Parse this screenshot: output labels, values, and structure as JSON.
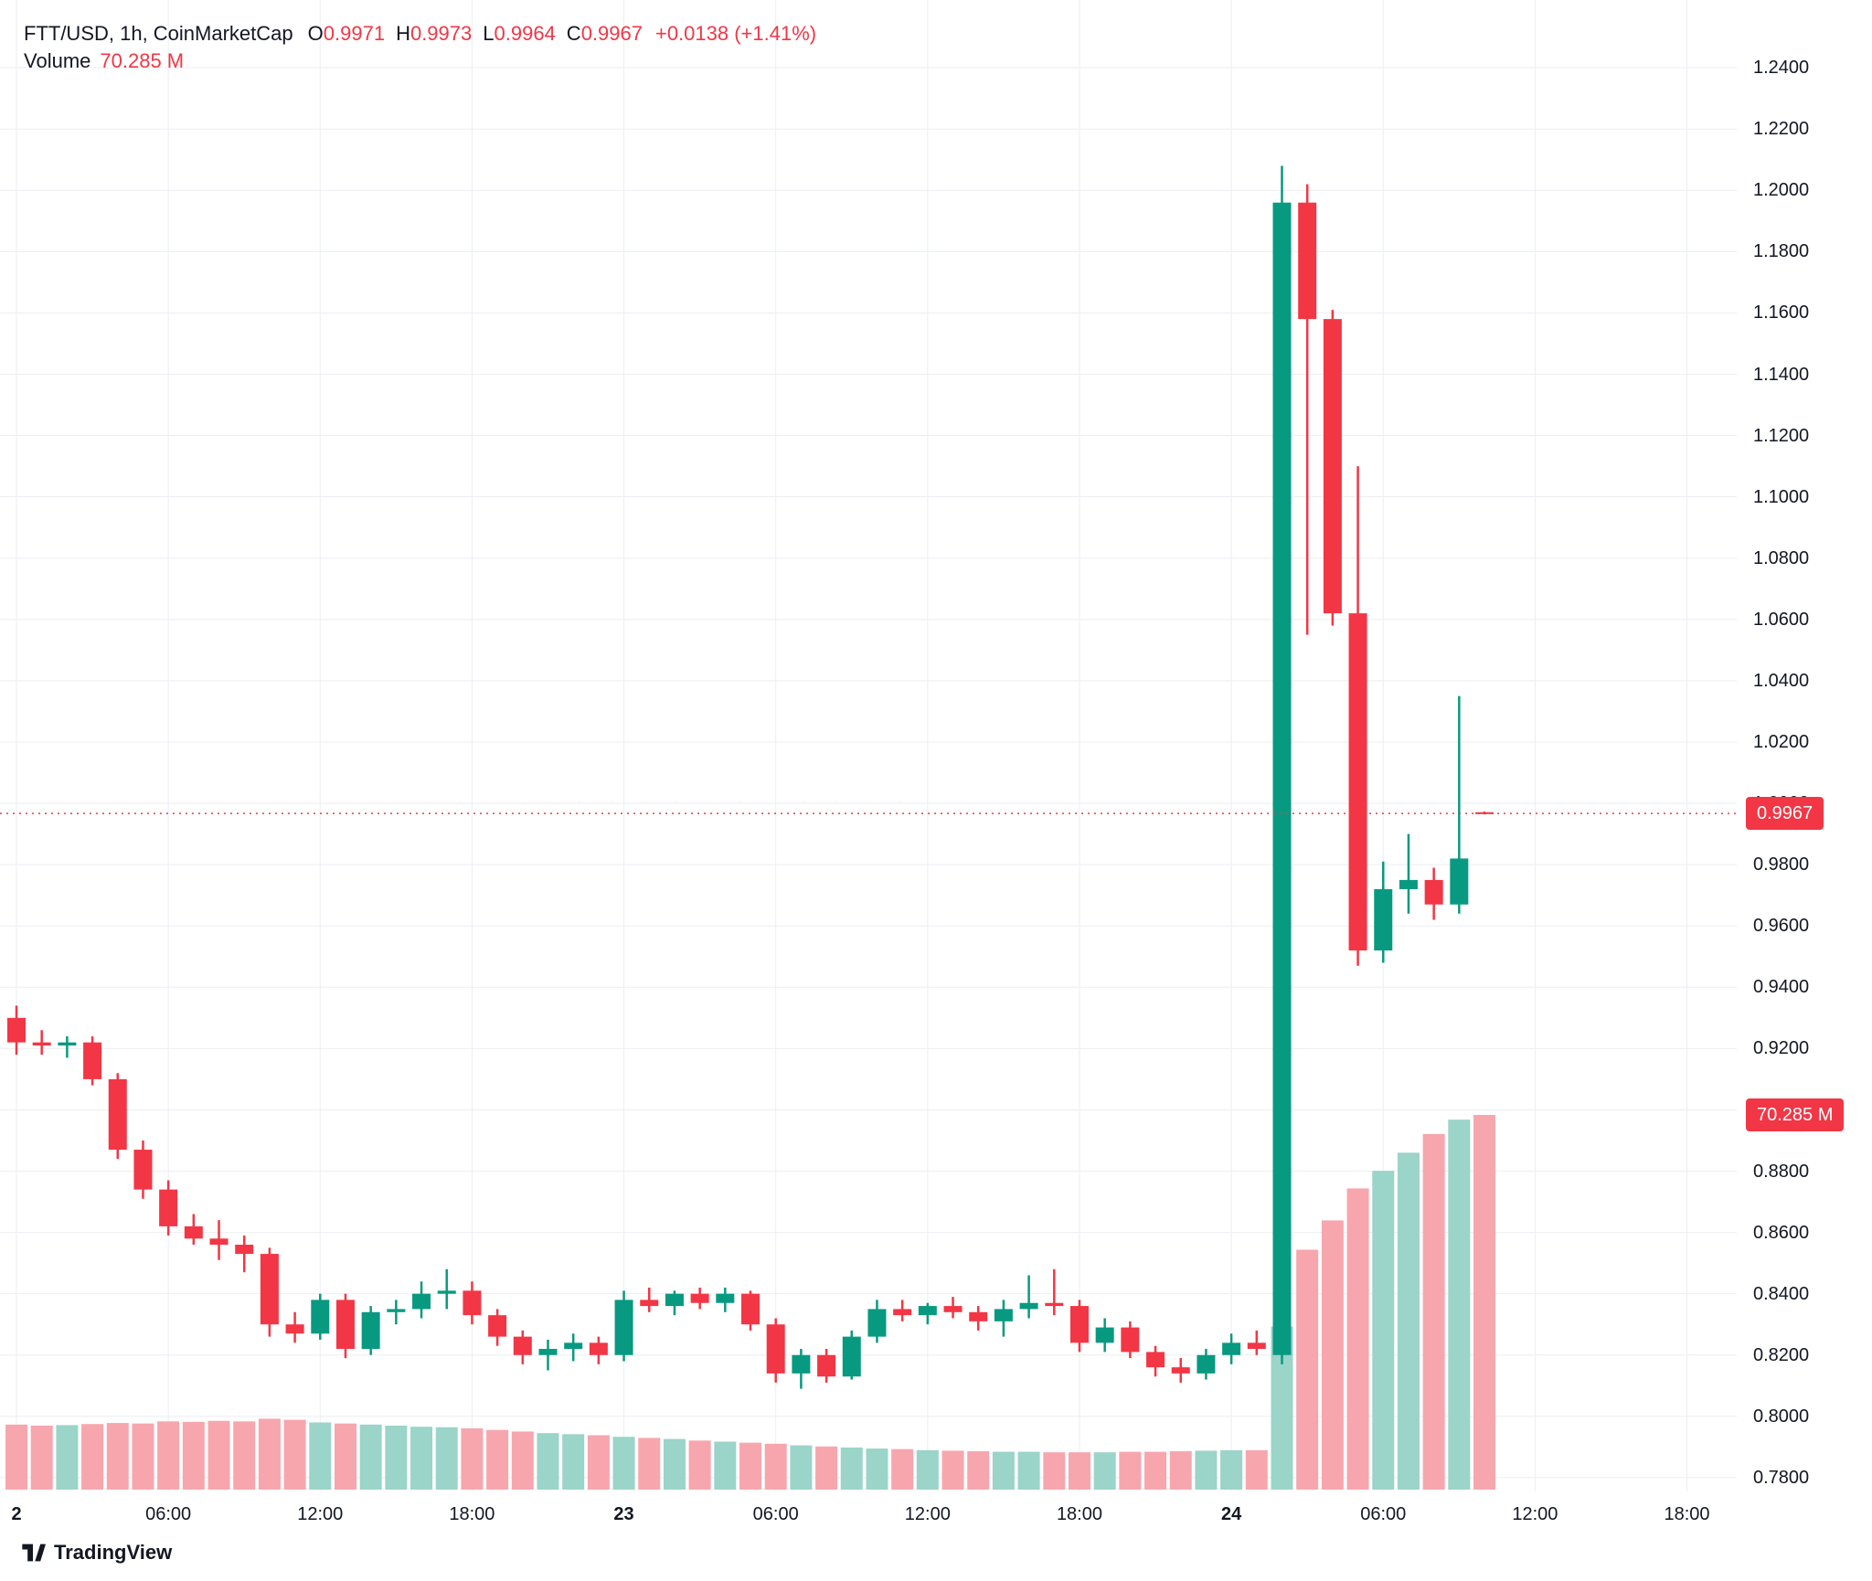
{
  "legend": {
    "symbol": "FTT/USD, 1h, CoinMarketCap",
    "open_label": "O",
    "open": "0.9971",
    "high_label": "H",
    "high": "0.9973",
    "low_label": "L",
    "low": "0.9964",
    "close_label": "C",
    "close": "0.9967",
    "change": "+0.0138 (+1.41%)",
    "volume_label": "Volume",
    "volume_value": "70.285 M"
  },
  "badges": {
    "price": "0.9967",
    "volume": "70.285 M"
  },
  "axis": {
    "price_ticks": [
      "1.2400",
      "1.2200",
      "1.2000",
      "1.1800",
      "1.1600",
      "1.1400",
      "1.1200",
      "1.1000",
      "1.0800",
      "1.0600",
      "1.0400",
      "1.0200",
      "1.0000",
      "0.9800",
      "0.9600",
      "0.9400",
      "0.9200",
      "0.9000",
      "0.8800",
      "0.8600",
      "0.8400",
      "0.8200",
      "0.8000",
      "0.7800"
    ],
    "time_ticks": [
      {
        "index": 0,
        "label": "2",
        "major": true
      },
      {
        "index": 6,
        "label": "06:00",
        "major": false
      },
      {
        "index": 12,
        "label": "12:00",
        "major": false
      },
      {
        "index": 18,
        "label": "18:00",
        "major": false
      },
      {
        "index": 24,
        "label": "23",
        "major": true
      },
      {
        "index": 30,
        "label": "06:00",
        "major": false
      },
      {
        "index": 36,
        "label": "12:00",
        "major": false
      },
      {
        "index": 42,
        "label": "18:00",
        "major": false
      },
      {
        "index": 48,
        "label": "24",
        "major": true
      },
      {
        "index": 54,
        "label": "06:00",
        "major": false
      },
      {
        "index": 60,
        "label": "12:00",
        "major": false
      },
      {
        "index": 66,
        "label": "18:00",
        "major": false
      }
    ]
  },
  "colors": {
    "up": "#089981",
    "down": "#f23645",
    "volume_up": "#9bd4c9",
    "volume_down": "#f7a6ae",
    "grid": "#eceef2",
    "text": "#131722",
    "badge_bg": "#f23645",
    "badge_text": "#ffffff",
    "background": "#ffffff"
  },
  "footer": {
    "logo_text": "TradingView"
  },
  "chart_data": {
    "type": "candlestick",
    "symbol": "FTT/USD",
    "interval": "1h",
    "source": "CoinMarketCap",
    "price_line": 0.9967,
    "current_ohlc": {
      "open": 0.9971,
      "high": 0.9973,
      "low": 0.9964,
      "close": 0.9967,
      "change": "+0.0138 (+1.41%)"
    },
    "current_volume_m": 70.285,
    "y_range": [
      0.7755,
      1.2621
    ],
    "y_ticks": [
      0.78,
      0.8,
      0.82,
      0.84,
      0.86,
      0.88,
      0.9,
      0.92,
      0.94,
      0.96,
      0.98,
      1.0,
      1.02,
      1.04,
      1.06,
      1.08,
      1.1,
      1.12,
      1.14,
      1.16,
      1.18,
      1.2,
      1.22,
      1.24
    ],
    "legend_position": "top-left",
    "grid": true,
    "candle_fields": [
      "open",
      "high",
      "low",
      "close",
      "volume_m"
    ],
    "candles": [
      [
        0.93,
        0.934,
        0.918,
        0.922,
        12.2
      ],
      [
        0.922,
        0.926,
        0.918,
        0.921,
        12.0
      ],
      [
        0.921,
        0.924,
        0.917,
        0.922,
        12.1
      ],
      [
        0.922,
        0.924,
        0.908,
        0.91,
        12.3
      ],
      [
        0.91,
        0.912,
        0.884,
        0.887,
        12.5
      ],
      [
        0.887,
        0.89,
        0.871,
        0.874,
        12.4
      ],
      [
        0.874,
        0.877,
        0.859,
        0.862,
        12.8
      ],
      [
        0.862,
        0.866,
        0.856,
        0.858,
        12.7
      ],
      [
        0.858,
        0.864,
        0.851,
        0.856,
        12.9
      ],
      [
        0.856,
        0.859,
        0.847,
        0.853,
        12.8
      ],
      [
        0.853,
        0.855,
        0.826,
        0.83,
        13.3
      ],
      [
        0.83,
        0.834,
        0.824,
        0.827,
        13.1
      ],
      [
        0.827,
        0.84,
        0.825,
        0.838,
        12.6
      ],
      [
        0.838,
        0.84,
        0.819,
        0.822,
        12.4
      ],
      [
        0.822,
        0.836,
        0.82,
        0.834,
        12.2
      ],
      [
        0.834,
        0.838,
        0.83,
        0.835,
        12.0
      ],
      [
        0.835,
        0.844,
        0.832,
        0.84,
        11.8
      ],
      [
        0.84,
        0.848,
        0.835,
        0.841,
        11.7
      ],
      [
        0.841,
        0.844,
        0.83,
        0.833,
        11.5
      ],
      [
        0.833,
        0.835,
        0.823,
        0.826,
        11.2
      ],
      [
        0.826,
        0.828,
        0.817,
        0.82,
        10.9
      ],
      [
        0.82,
        0.825,
        0.815,
        0.822,
        10.6
      ],
      [
        0.822,
        0.827,
        0.818,
        0.824,
        10.4
      ],
      [
        0.824,
        0.826,
        0.817,
        0.82,
        10.2
      ],
      [
        0.82,
        0.841,
        0.818,
        0.838,
        9.9
      ],
      [
        0.838,
        0.842,
        0.834,
        0.836,
        9.7
      ],
      [
        0.836,
        0.841,
        0.833,
        0.84,
        9.5
      ],
      [
        0.84,
        0.842,
        0.835,
        0.837,
        9.2
      ],
      [
        0.837,
        0.842,
        0.834,
        0.84,
        9.0
      ],
      [
        0.84,
        0.841,
        0.828,
        0.83,
        8.8
      ],
      [
        0.83,
        0.832,
        0.811,
        0.814,
        8.6
      ],
      [
        0.814,
        0.822,
        0.809,
        0.82,
        8.3
      ],
      [
        0.82,
        0.822,
        0.811,
        0.813,
        8.1
      ],
      [
        0.813,
        0.828,
        0.812,
        0.826,
        7.9
      ],
      [
        0.826,
        0.838,
        0.824,
        0.835,
        7.7
      ],
      [
        0.835,
        0.838,
        0.831,
        0.833,
        7.6
      ],
      [
        0.833,
        0.837,
        0.83,
        0.836,
        7.4
      ],
      [
        0.836,
        0.839,
        0.832,
        0.834,
        7.3
      ],
      [
        0.834,
        0.836,
        0.828,
        0.831,
        7.2
      ],
      [
        0.831,
        0.838,
        0.826,
        0.835,
        7.1
      ],
      [
        0.835,
        0.846,
        0.832,
        0.837,
        7.1
      ],
      [
        0.837,
        0.848,
        0.833,
        0.836,
        7.0
      ],
      [
        0.836,
        0.838,
        0.821,
        0.824,
        7.0
      ],
      [
        0.824,
        0.832,
        0.821,
        0.829,
        7.0
      ],
      [
        0.829,
        0.831,
        0.819,
        0.821,
        7.1
      ],
      [
        0.821,
        0.823,
        0.813,
        0.816,
        7.1
      ],
      [
        0.816,
        0.819,
        0.811,
        0.814,
        7.2
      ],
      [
        0.814,
        0.822,
        0.812,
        0.82,
        7.3
      ],
      [
        0.82,
        0.827,
        0.817,
        0.824,
        7.4
      ],
      [
        0.824,
        0.828,
        0.82,
        0.822,
        7.4
      ],
      [
        0.82,
        1.208,
        0.817,
        1.196,
        30.6
      ],
      [
        1.196,
        1.202,
        1.055,
        1.158,
        45.0
      ],
      [
        1.158,
        1.161,
        1.058,
        1.062,
        50.5
      ],
      [
        1.062,
        1.11,
        0.947,
        0.952,
        56.5
      ],
      [
        0.952,
        0.981,
        0.948,
        0.972,
        59.8
      ],
      [
        0.972,
        0.99,
        0.964,
        0.975,
        63.2
      ],
      [
        0.975,
        0.979,
        0.962,
        0.967,
        66.7
      ],
      [
        0.967,
        1.035,
        0.964,
        0.982,
        69.4
      ],
      [
        0.9971,
        0.9973,
        0.9964,
        0.9967,
        70.285
      ]
    ]
  }
}
